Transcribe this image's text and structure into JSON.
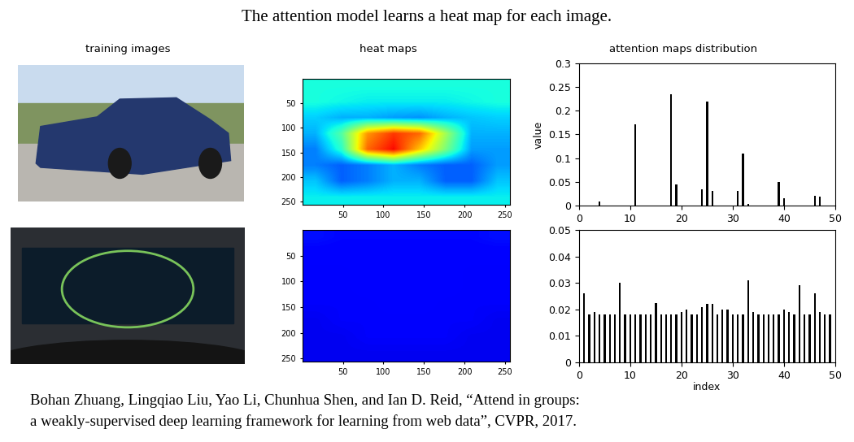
{
  "title": "The attention model learns a heat map for each image.",
  "column_headers": [
    "training images",
    "heat maps",
    "attention maps distribution"
  ],
  "heat_maps": [
    {
      "type": "heatmap",
      "cells": [
        [
          0.38,
          0.38,
          0.38,
          0.38,
          0.38,
          0.38,
          0.38,
          0.38
        ],
        [
          0.38,
          0.37,
          0.36,
          0.36,
          0.36,
          0.36,
          0.37,
          0.38
        ],
        [
          0.33,
          0.3,
          0.3,
          0.28,
          0.27,
          0.3,
          0.32,
          0.33
        ],
        [
          0.3,
          0.45,
          0.75,
          0.85,
          0.8,
          0.55,
          0.3,
          0.3
        ],
        [
          0.25,
          0.4,
          0.8,
          0.9,
          0.7,
          0.5,
          0.28,
          0.28
        ],
        [
          0.25,
          0.22,
          0.25,
          0.3,
          0.25,
          0.22,
          0.22,
          0.28
        ],
        [
          0.32,
          0.22,
          0.25,
          0.3,
          0.3,
          0.22,
          0.22,
          0.32
        ],
        [
          0.36,
          0.36,
          0.36,
          0.36,
          0.36,
          0.36,
          0.36,
          0.36
        ]
      ],
      "color_range": [
        0,
        1
      ],
      "xlim": [
        0,
        256
      ],
      "ylim": [
        256,
        0
      ],
      "xticks": [
        50,
        100,
        150,
        200,
        250
      ],
      "yticks": [
        50,
        100,
        150,
        200,
        250
      ]
    },
    {
      "type": "heatmap",
      "cells": [
        [
          0.14,
          0.13,
          0.13,
          0.13,
          0.13,
          0.13,
          0.13,
          0.14
        ],
        [
          0.12,
          0.12,
          0.12,
          0.12,
          0.12,
          0.12,
          0.12,
          0.12
        ],
        [
          0.11,
          0.11,
          0.12,
          0.12,
          0.12,
          0.12,
          0.11,
          0.11
        ],
        [
          0.11,
          0.11,
          0.12,
          0.12,
          0.12,
          0.12,
          0.11,
          0.11
        ],
        [
          0.11,
          0.11,
          0.11,
          0.12,
          0.12,
          0.11,
          0.11,
          0.11
        ],
        [
          0.1,
          0.11,
          0.11,
          0.11,
          0.11,
          0.11,
          0.11,
          0.1
        ],
        [
          0.1,
          0.1,
          0.11,
          0.11,
          0.11,
          0.11,
          0.1,
          0.1
        ],
        [
          0.1,
          0.1,
          0.1,
          0.1,
          0.1,
          0.1,
          0.1,
          0.1
        ]
      ],
      "color_range": [
        0,
        1
      ],
      "xlim": [
        0,
        256
      ],
      "ylim": [
        256,
        0
      ],
      "xticks": [
        50,
        100,
        150,
        200,
        250
      ],
      "yticks": [
        50,
        100,
        150,
        200,
        250
      ]
    }
  ],
  "chart_data": [
    {
      "type": "bar",
      "x": [
        4,
        11,
        18,
        19,
        24,
        25,
        26,
        31,
        32,
        33,
        39,
        40,
        46,
        47
      ],
      "values": [
        0.008,
        0.172,
        0.235,
        0.045,
        0.035,
        0.22,
        0.03,
        0.03,
        0.11,
        0.003,
        0.05,
        0.015,
        0.02,
        0.018
      ],
      "color": "#000000",
      "xlim": [
        0,
        50
      ],
      "xticks": [
        0,
        10,
        20,
        30,
        40,
        50
      ],
      "ylim": [
        0,
        0.3
      ],
      "yticks": [
        0,
        0.05,
        0.1,
        0.15,
        0.2,
        0.25,
        0.3
      ],
      "y_label": "value"
    },
    {
      "type": "bar",
      "x": [
        1,
        2,
        3,
        4,
        5,
        6,
        7,
        8,
        9,
        10,
        11,
        12,
        13,
        14,
        15,
        16,
        17,
        18,
        19,
        20,
        21,
        22,
        23,
        24,
        25,
        26,
        27,
        28,
        29,
        30,
        31,
        32,
        33,
        34,
        35,
        36,
        37,
        38,
        39,
        40,
        41,
        42,
        43,
        44,
        45,
        46,
        47,
        48,
        49
      ],
      "values": [
        0.026,
        0.018,
        0.019,
        0.018,
        0.018,
        0.018,
        0.018,
        0.03,
        0.018,
        0.018,
        0.018,
        0.018,
        0.018,
        0.018,
        0.0225,
        0.018,
        0.018,
        0.018,
        0.018,
        0.019,
        0.02,
        0.018,
        0.018,
        0.021,
        0.022,
        0.022,
        0.018,
        0.02,
        0.02,
        0.018,
        0.018,
        0.018,
        0.031,
        0.019,
        0.018,
        0.018,
        0.018,
        0.018,
        0.018,
        0.02,
        0.019,
        0.018,
        0.029,
        0.018,
        0.018,
        0.026,
        0.019,
        0.018,
        0.018
      ],
      "color": "#000000",
      "xlim": [
        0,
        50
      ],
      "xticks": [
        0,
        10,
        20,
        30,
        40,
        50
      ],
      "ylim": [
        0,
        0.05
      ],
      "yticks": [
        0,
        0.01,
        0.02,
        0.03,
        0.04,
        0.05
      ],
      "x_label": "index"
    }
  ],
  "citation": [
    "Bohan Zhuang, Lingqiao Liu, Yao Li, Chunhua Shen, and Ian D. Reid, “Attend in groups:",
    "a weakly-supervised deep learning framework for learning from web data”, CVPR, 2017."
  ]
}
